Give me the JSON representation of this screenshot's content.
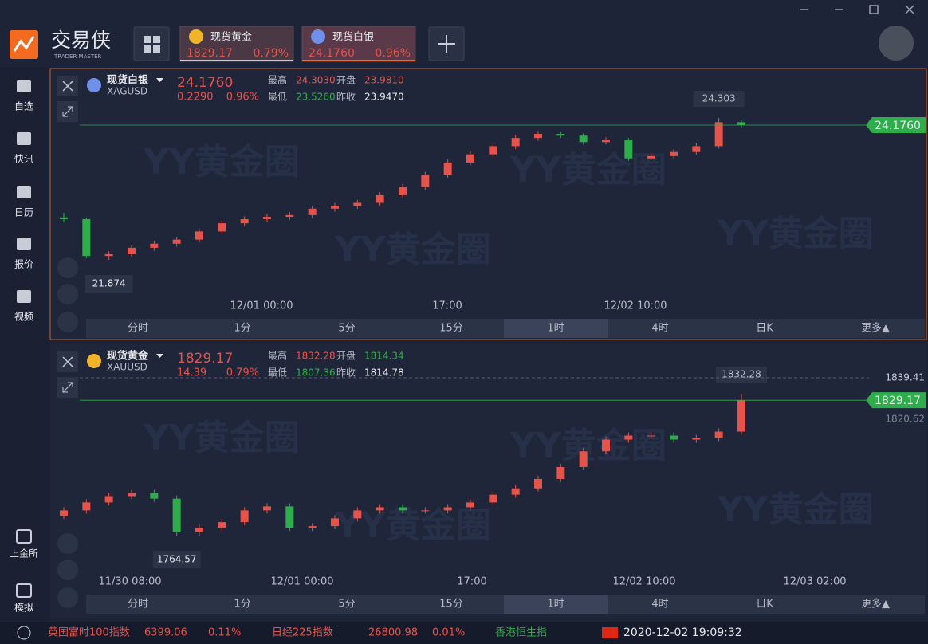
{
  "header": {
    "logo_cn": "交易侠",
    "logo_en": "TRADER MASTER",
    "tabs": [
      {
        "name": "现货黄金",
        "price": "1829.17",
        "change": "0.79%"
      },
      {
        "name": "现货白银",
        "price": "24.1760",
        "change": "0.96%"
      }
    ]
  },
  "sidebar": {
    "top": [
      "自选",
      "快讯",
      "日历",
      "报价",
      "视频"
    ],
    "bottom": [
      "上金所",
      "模拟"
    ]
  },
  "watermark": "YY黄金圈",
  "panels": [
    {
      "name": "现货白银",
      "code": "XAGUSD",
      "price": "24.1760",
      "change": "0.2290",
      "change_pct": "0.96%",
      "stats": [
        {
          "label": "最高",
          "value": "24.3030",
          "color": "#e5534b"
        },
        {
          "label": "开盘",
          "value": "23.9810",
          "color": "#e5534b"
        },
        {
          "label": "最低",
          "value": "23.5260",
          "color": "#2eae4a"
        },
        {
          "label": "昨收",
          "value": "23.9470",
          "color": "#e6e8ee"
        }
      ],
      "high_label": "24.303",
      "low_label": "21.874",
      "axis_labels": [],
      "xlabels": [
        "12/01 00:00",
        "17:00",
        "12/02 10:00"
      ],
      "timeframes": [
        "分时",
        "1分",
        "5分",
        "15分",
        "1时",
        "4时",
        "日K",
        "更多▲"
      ],
      "active": 4,
      "candles": {
        "open": [
          22.6,
          22.57,
          21.94,
          21.97,
          22.08,
          22.15,
          22.22,
          22.36,
          22.5,
          22.57,
          22.61,
          22.64,
          22.75,
          22.8,
          22.85,
          22.98,
          23.12,
          23.33,
          23.54,
          23.68,
          23.82,
          23.96,
          24.03,
          24.0,
          23.89,
          23.92,
          23.61,
          23.65,
          23.72,
          23.82,
          24.23
        ],
        "close": [
          22.57,
          21.94,
          21.97,
          22.08,
          22.15,
          22.22,
          22.36,
          22.5,
          22.57,
          22.61,
          22.64,
          22.75,
          22.8,
          22.85,
          22.98,
          23.12,
          23.33,
          23.54,
          23.68,
          23.82,
          23.96,
          24.03,
          24.0,
          23.89,
          23.92,
          23.61,
          23.65,
          23.72,
          23.82,
          24.23,
          24.18
        ],
        "high": [
          22.68,
          22.6,
          22.02,
          22.12,
          22.2,
          22.27,
          22.4,
          22.55,
          22.62,
          22.66,
          22.69,
          22.8,
          22.85,
          22.9,
          23.03,
          23.17,
          23.38,
          23.59,
          23.73,
          23.87,
          24.01,
          24.08,
          24.07,
          24.04,
          23.97,
          23.96,
          23.7,
          23.77,
          23.87,
          24.303,
          24.27
        ],
        "low": [
          22.52,
          21.9,
          21.874,
          21.93,
          22.03,
          22.1,
          22.17,
          22.31,
          22.45,
          22.52,
          22.56,
          22.59,
          22.7,
          22.75,
          22.8,
          22.93,
          23.07,
          23.28,
          23.49,
          23.63,
          23.77,
          23.91,
          23.96,
          23.85,
          23.85,
          23.57,
          23.58,
          23.6,
          23.67,
          23.78,
          24.13
        ]
      }
    },
    {
      "name": "现货黄金",
      "code": "XAUUSD",
      "price": "1829.17",
      "change": "14.39",
      "change_pct": "0.79%",
      "stats": [
        {
          "label": "最高",
          "value": "1832.28",
          "color": "#e5534b"
        },
        {
          "label": "开盘",
          "value": "1814.34",
          "color": "#2eae4a"
        },
        {
          "label": "最低",
          "value": "1807.36",
          "color": "#2eae4a"
        },
        {
          "label": "昨收",
          "value": "1814.78",
          "color": "#e6e8ee"
        }
      ],
      "high_label": "1832.28",
      "low_label": "1764.57",
      "axis_labels": [
        "1839.41",
        "1820.62"
      ],
      "xlabels": [
        "11/30 08:00",
        "12/01 00:00",
        "17:00",
        "12/02 10:00",
        "12/03 02:00"
      ],
      "timeframes": [
        "分时",
        "1分",
        "5分",
        "15分",
        "1时",
        "4时",
        "日K",
        "更多▲"
      ],
      "active": 4,
      "candles": {
        "open": [
          1774.0,
          1776.6,
          1780.4,
          1783.4,
          1784.9,
          1782.2,
          1766.1,
          1768.3,
          1771.0,
          1776.6,
          1778.5,
          1768.3,
          1769.1,
          1772.8,
          1776.6,
          1778.1,
          1776.6,
          1776.6,
          1778.1,
          1780.4,
          1784.1,
          1787.1,
          1791.6,
          1797.3,
          1804.8,
          1810.4,
          1812.3,
          1812.3,
          1810.4,
          1811.2,
          1814.2
        ],
        "close": [
          1776.6,
          1780.4,
          1783.4,
          1784.9,
          1782.2,
          1766.1,
          1768.3,
          1771.0,
          1776.6,
          1778.5,
          1768.3,
          1769.1,
          1772.8,
          1776.6,
          1778.1,
          1776.6,
          1776.6,
          1778.1,
          1780.4,
          1784.1,
          1787.1,
          1791.6,
          1797.3,
          1804.8,
          1810.4,
          1812.3,
          1812.3,
          1810.4,
          1811.2,
          1814.2,
          1829.17
        ],
        "high": [
          1778.1,
          1781.9,
          1784.9,
          1786.4,
          1786.4,
          1783.7,
          1769.8,
          1772.5,
          1778.1,
          1780.0,
          1780.0,
          1770.6,
          1774.3,
          1778.1,
          1779.6,
          1779.6,
          1778.1,
          1779.6,
          1781.9,
          1785.6,
          1788.6,
          1793.1,
          1798.8,
          1806.3,
          1811.9,
          1813.8,
          1813.8,
          1813.8,
          1812.7,
          1815.7,
          1832.28
        ],
        "low": [
          1772.5,
          1775.1,
          1778.9,
          1781.9,
          1780.7,
          1764.57,
          1764.6,
          1766.8,
          1769.5,
          1775.1,
          1766.8,
          1766.8,
          1767.6,
          1771.3,
          1775.1,
          1775.1,
          1775.1,
          1775.1,
          1776.6,
          1778.9,
          1782.6,
          1785.6,
          1790.1,
          1795.8,
          1803.3,
          1808.9,
          1810.8,
          1808.9,
          1808.9,
          1809.7,
          1812.7
        ]
      }
    }
  ],
  "footer": {
    "tickers": [
      {
        "name": "英国富时100指数",
        "value": "6399.06",
        "change": "0.11%"
      },
      {
        "name": "日经225指数",
        "value": "26800.98",
        "change": "0.01%"
      }
    ],
    "partial": "香港恒生指",
    "time": "2020-12-02 19:09:32"
  }
}
